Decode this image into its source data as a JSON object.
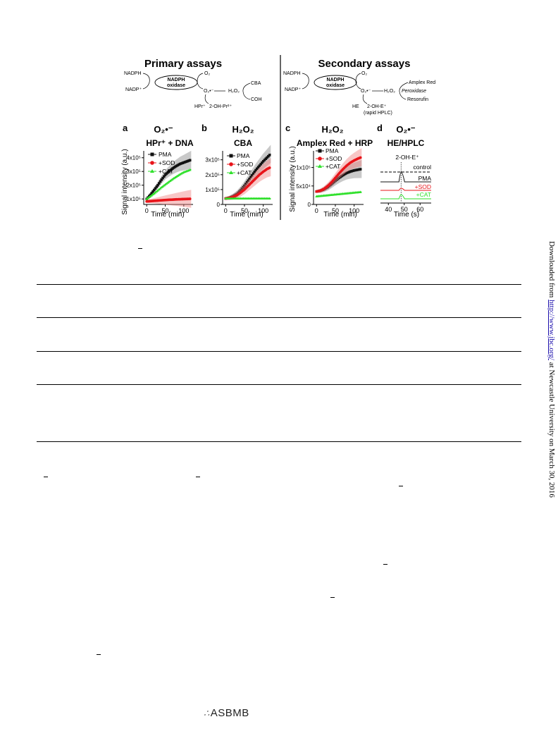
{
  "figure": {
    "headings": {
      "primary": "Primary assays",
      "secondary": "Secondary assays"
    },
    "scheme": {
      "nadph": "NADPH",
      "nadp": "NADP⁺",
      "enzyme_line1": "NADPH",
      "enzyme_line2": "oxidase",
      "o2": "O₂",
      "superoxide": "O₂•⁻",
      "h2o2": "H₂O₂",
      "cba": "CBA",
      "coh": "COH",
      "hpr": "HPr⁺",
      "oh_pr": "2-OH-Pr²⁺",
      "amplex_red": "Amplex Red",
      "peroxidase": "Peroxidase",
      "resorufin": "Resorufin",
      "he": "HE",
      "oh_e": "2-OH-E⁺",
      "rapid_hplc": "(rapid HPLC)"
    },
    "panels": [
      {
        "letter": "a",
        "species": "O₂•⁻",
        "assay": "HPr⁺ + DNA"
      },
      {
        "letter": "b",
        "species": "H₂O₂",
        "assay": "CBA"
      },
      {
        "letter": "c",
        "species": "H₂O₂",
        "assay": "Amplex Red + HRP"
      },
      {
        "letter": "d",
        "species": "O₂•⁻",
        "assay": "HE/HPLC"
      }
    ],
    "y_axis_label": "Signal intensity (a.u.)",
    "x_axis_label_time_min": "Time (min)",
    "x_axis_label_time_s": "Time (s)",
    "legend": [
      "PMA",
      "+SOD",
      "+CAT"
    ],
    "hplc_labels": {
      "peak": "2-OH-E⁺",
      "control": "control",
      "pma": "PMA",
      "sod": "+SOD",
      "cat": "+CAT"
    }
  },
  "colors": {
    "pma": "#111111",
    "sod": "#e8141a",
    "cat": "#2ee02a",
    "sod_band": "#f08080"
  },
  "chart_data": [
    {
      "type": "line",
      "panel": "a",
      "x": [
        0,
        10,
        20,
        30,
        40,
        50,
        60,
        70,
        80,
        90,
        100,
        110,
        120
      ],
      "series": [
        {
          "name": "PMA",
          "values": [
            100000,
            130000,
            165000,
            200000,
            240000,
            275000,
            300000,
            322000,
            340000,
            355000,
            365000,
            375000,
            385000
          ]
        },
        {
          "name": "+SOD",
          "values": [
            82000,
            84000,
            86000,
            88000,
            90000,
            92000,
            94000,
            95000,
            97000,
            98000,
            99000,
            100000,
            101000
          ]
        },
        {
          "name": "+CAT",
          "values": [
            100000,
            120000,
            140000,
            162000,
            185000,
            205000,
            225000,
            245000,
            263000,
            280000,
            295000,
            305000,
            315000
          ]
        }
      ],
      "xlim": [
        -8,
        125
      ],
      "ylim": [
        60000,
        450000
      ],
      "xticks": [
        "0",
        "50",
        "100"
      ],
      "yticks": [
        "1x10⁵",
        "2x10⁵",
        "3x10⁵",
        "4x10⁵"
      ]
    },
    {
      "type": "line",
      "panel": "b",
      "x": [
        0,
        10,
        20,
        30,
        40,
        50,
        60,
        70,
        80,
        90,
        100,
        110,
        120
      ],
      "series": [
        {
          "name": "PMA",
          "values": [
            40000,
            45000,
            55000,
            70000,
            95000,
            125000,
            160000,
            195000,
            230000,
            260000,
            290000,
            315000,
            340000
          ]
        },
        {
          "name": "+SOD",
          "values": [
            40000,
            43000,
            50000,
            62000,
            80000,
            100000,
            125000,
            150000,
            175000,
            200000,
            220000,
            238000,
            250000
          ]
        },
        {
          "name": "+CAT",
          "values": [
            40000,
            40000,
            40000,
            40000,
            40000,
            40000,
            40000,
            40000,
            40000,
            40000,
            40000,
            40000,
            40000
          ]
        }
      ],
      "xlim": [
        -8,
        125
      ],
      "ylim": [
        0,
        360000
      ],
      "xticks": [
        "0",
        "50",
        "100"
      ],
      "yticks": [
        "0",
        "1x10⁵",
        "2x10⁵",
        "3x10⁵"
      ]
    },
    {
      "type": "line",
      "panel": "c",
      "x": [
        0,
        10,
        20,
        30,
        40,
        50,
        60,
        70,
        80,
        90,
        100,
        110,
        120
      ],
      "series": [
        {
          "name": "PMA",
          "values": [
            35000,
            37000,
            41000,
            47000,
            55000,
            64000,
            72000,
            79000,
            85000,
            89000,
            92000,
            94000,
            96000
          ]
        },
        {
          "name": "+SOD",
          "values": [
            35000,
            37000,
            42000,
            50000,
            60000,
            72000,
            84000,
            95000,
            105000,
            113000,
            119000,
            124000,
            128000
          ]
        },
        {
          "name": "+CAT",
          "values": [
            22000,
            23000,
            24000,
            25000,
            26000,
            27000,
            28000,
            29000,
            30000,
            31000,
            32000,
            33000,
            34000
          ]
        }
      ],
      "xlim": [
        -8,
        125
      ],
      "ylim": [
        0,
        145000
      ],
      "xticks": [
        "0",
        "50",
        "100"
      ],
      "yticks": [
        "0",
        "5x10⁴",
        "1x10⁵"
      ]
    },
    {
      "type": "line",
      "panel": "d",
      "x_range_s": [
        35,
        67
      ],
      "peak_s": 48,
      "series": [
        {
          "name": "control",
          "style": "dashed"
        },
        {
          "name": "PMA",
          "peak": "large"
        },
        {
          "name": "+SOD",
          "peak": "small"
        },
        {
          "name": "+CAT",
          "peak": "medium"
        }
      ],
      "xticks": [
        "40",
        "50",
        "60"
      ]
    }
  ],
  "sidebar": {
    "prefix": "Downloaded from ",
    "link": "http://www.jbc.org/",
    "suffix": " at Newcastle University on March 30, 2016"
  },
  "footer": {
    "logo_mark": "∴",
    "logo_text": "ASBMB"
  }
}
